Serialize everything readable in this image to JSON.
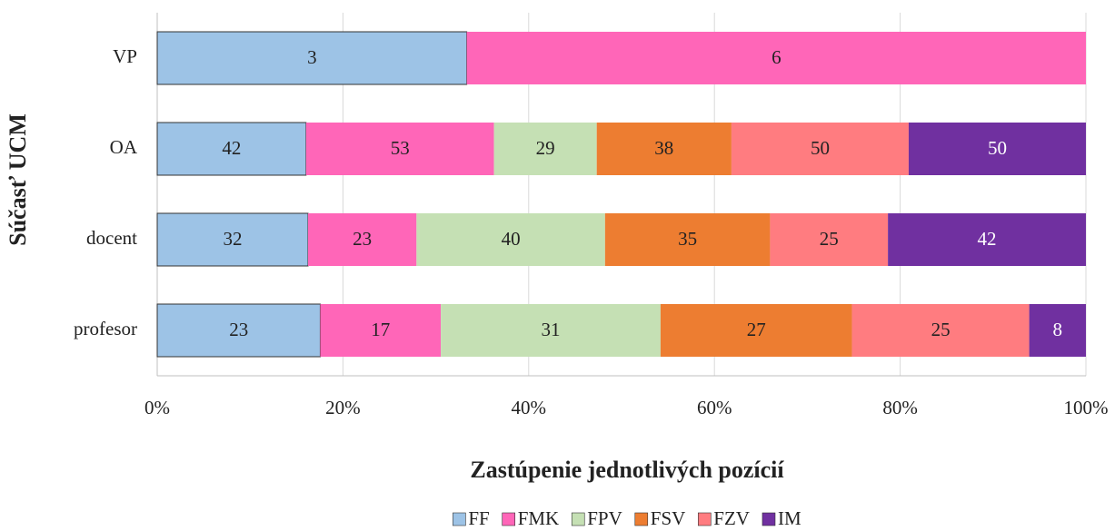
{
  "chart_data": {
    "type": "bar",
    "orientation": "horizontal",
    "stacking": "percent",
    "xlabel": "Zastúpenie jednotlivých pozícií",
    "ylabel": "Súčasť UCM",
    "categories": [
      "VP",
      "OA",
      "docent",
      "profesor"
    ],
    "series": [
      {
        "name": "FF",
        "color": "#9dc3e6",
        "values": [
          3,
          42,
          32,
          23
        ]
      },
      {
        "name": "FMK",
        "color": "#ff66b8",
        "values": [
          6,
          53,
          23,
          17
        ]
      },
      {
        "name": "FPV",
        "color": "#c5e0b4",
        "values": [
          null,
          29,
          40,
          31
        ]
      },
      {
        "name": "FSV",
        "color": "#ed7d31",
        "values": [
          null,
          38,
          35,
          27
        ]
      },
      {
        "name": "FZV",
        "color": "#ff7c80",
        "values": [
          null,
          50,
          25,
          25
        ]
      },
      {
        "name": "IM",
        "color": "#7030a0",
        "values": [
          null,
          50,
          42,
          8
        ]
      }
    ],
    "xlim": [
      0,
      100
    ],
    "xticks": [
      {
        "value": 0,
        "label": "0%"
      },
      {
        "value": 20,
        "label": "20%"
      },
      {
        "value": 40,
        "label": "40%"
      },
      {
        "value": 60,
        "label": "60%"
      },
      {
        "value": 80,
        "label": "80%"
      },
      {
        "value": 100,
        "label": "100%"
      }
    ],
    "grid": true,
    "legend": "bottom"
  }
}
